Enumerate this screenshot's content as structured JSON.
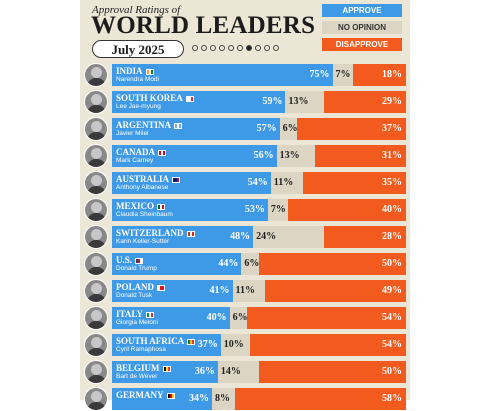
{
  "header": {
    "subtitle": "Approval Ratings of",
    "title": "WORLD LEADERS",
    "date": "July 2025",
    "dots_total": 10,
    "dots_active_index": 6
  },
  "legend": {
    "approve": "APPROVE",
    "no_opinion": "NO OPINION",
    "disapprove": "DISAPPROVE"
  },
  "colors": {
    "approve": "#3e9ae6",
    "no_opinion": "#ddd5c3",
    "disapprove": "#f35a1d",
    "background": "#ece6d6"
  },
  "chart_data": {
    "type": "bar",
    "stacked": true,
    "orientation": "horizontal",
    "title": "WORLD LEADERS",
    "subtitle": "Approval Ratings of",
    "categories": [
      "INDIA",
      "SOUTH KOREA",
      "ARGENTINA",
      "CANADA",
      "AUSTRALIA",
      "MEXICO",
      "SWITZERLAND",
      "U.S.",
      "POLAND",
      "ITALY",
      "SOUTH AFRICA",
      "BELGIUM",
      "GERMANY"
    ],
    "leaders": [
      "Narendra Modi",
      "Lee Jae-myung",
      "Javier Milei",
      "Mark Carney",
      "Anthony Albanese",
      "Claudia Sheinbaum",
      "Karin Keller-Sutter",
      "Donald Trump",
      "Donald Tusk",
      "Giorgia Meloni",
      "Cyril Ramaphosa",
      "Bart de Wever",
      ""
    ],
    "series": [
      {
        "name": "APPROVE",
        "values": [
          75,
          59,
          57,
          56,
          54,
          53,
          48,
          44,
          41,
          40,
          37,
          36,
          34
        ]
      },
      {
        "name": "NO OPINION",
        "values": [
          7,
          13,
          6,
          13,
          11,
          7,
          24,
          6,
          11,
          6,
          10,
          14,
          8
        ]
      },
      {
        "name": "DISAPPROVE",
        "values": [
          18,
          29,
          37,
          31,
          35,
          40,
          28,
          50,
          49,
          54,
          54,
          50,
          58
        ]
      }
    ],
    "flags": [
      [
        "#ff9933",
        "#ffffff",
        "#138808"
      ],
      [
        "#ffffff",
        "#ffffff",
        "#cd2e3a"
      ],
      [
        "#74acdf",
        "#ffffff",
        "#74acdf"
      ],
      [
        "#d80621",
        "#ffffff",
        "#d80621"
      ],
      [
        "#012169",
        "#012169",
        "#c8102e"
      ],
      [
        "#006847",
        "#ffffff",
        "#ce1126"
      ],
      [
        "#d52b1e",
        "#ffffff",
        "#d52b1e"
      ],
      [
        "#3c3b6e",
        "#b22234",
        "#ffffff"
      ],
      [
        "#ffffff",
        "#dc143c",
        "#dc143c"
      ],
      [
        "#009246",
        "#ffffff",
        "#ce2b37"
      ],
      [
        "#007a4d",
        "#ffb612",
        "#de3831"
      ],
      [
        "#000000",
        "#fdda24",
        "#ef3340"
      ],
      [
        "#000000",
        "#dd0000",
        "#ffce00"
      ]
    ]
  }
}
